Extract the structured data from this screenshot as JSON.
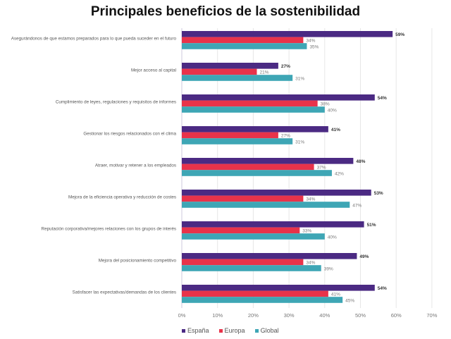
{
  "chart_data": {
    "type": "bar",
    "orientation": "horizontal",
    "title": "Principales beneficios de la sostenibilidad",
    "categories": [
      "Asegurándonos de que estamos preparados para lo que pueda suceder en el futuro",
      "Mejor acceso al capital",
      "Cumplimiento de leyes, regulaciones y requisitos de informes",
      "Gestionar los riesgos relacionados con el clima",
      "Atraer, motivar y retener a los empleados",
      "Mejora de la eficiencia operativa y reducción de costes",
      "Reputación corporativa/mejores relaciones con los grupos de interés",
      "Mejora del posicionamiento competitivo",
      "Satisfacer las expectativas/demandas de los clientes"
    ],
    "series": [
      {
        "name": "España",
        "color": "#4b2a83",
        "values": [
          59,
          27,
          54,
          41,
          48,
          53,
          51,
          49,
          54
        ]
      },
      {
        "name": "Europa",
        "color": "#e8334a",
        "values": [
          34,
          21,
          38,
          27,
          37,
          34,
          33,
          34,
          41
        ]
      },
      {
        "name": "Global",
        "color": "#3ea6b5",
        "values": [
          35,
          31,
          40,
          31,
          42,
          47,
          40,
          39,
          45
        ]
      }
    ],
    "xlim": [
      0,
      70
    ],
    "xticks": [
      "0%",
      "10%",
      "20%",
      "30%",
      "40%",
      "50%",
      "60%",
      "70%"
    ],
    "value_suffix": "%",
    "grid": true,
    "legend_position": "bottom"
  }
}
